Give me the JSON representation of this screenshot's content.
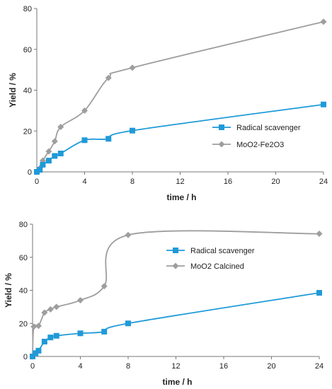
{
  "chart_data": [
    {
      "type": "line",
      "xlabel": "time / h",
      "ylabel": "Yield / %",
      "xlim": [
        0,
        24
      ],
      "ylim": [
        0,
        80
      ],
      "xticks": [
        0,
        4,
        8,
        12,
        16,
        20,
        24
      ],
      "yticks": [
        0,
        20,
        40,
        60,
        80
      ],
      "grid": false,
      "legend_position": "right",
      "series": [
        {
          "name": "Radical scavenger",
          "color": "#1f9ad8",
          "marker": "square",
          "x": [
            0,
            0.25,
            0.5,
            1,
            1.5,
            2,
            4,
            6,
            8,
            24
          ],
          "y": [
            0,
            1,
            3.5,
            5.5,
            7.8,
            9,
            15.5,
            16.2,
            20.2,
            33
          ]
        },
        {
          "name": "MoO2-Fe2O3",
          "color": "#9e9e9e",
          "marker": "diamond",
          "x": [
            0,
            0.25,
            0.5,
            1,
            1.5,
            2,
            4,
            6,
            8,
            24
          ],
          "y": [
            0,
            1.8,
            5.5,
            10,
            15,
            22,
            30,
            46,
            51,
            73.5
          ]
        }
      ]
    },
    {
      "type": "line",
      "xlabel": "time / h",
      "ylabel": "Yield / %",
      "xlim": [
        0,
        24
      ],
      "ylim": [
        0,
        80
      ],
      "xticks": [
        0,
        4,
        8,
        12,
        16,
        20,
        24
      ],
      "yticks": [
        0,
        20,
        40,
        60,
        80
      ],
      "grid": false,
      "legend_position": "center",
      "series": [
        {
          "name": "Radical scavenger",
          "color": "#1f9ad8",
          "marker": "square",
          "x": [
            0,
            0.25,
            0.5,
            1,
            1.5,
            2,
            4,
            6,
            8,
            24
          ],
          "y": [
            0,
            2,
            3.5,
            9,
            11.5,
            12.5,
            14,
            15,
            20,
            38.5
          ]
        },
        {
          "name": "MoO2 Calcined",
          "color": "#9e9e9e",
          "marker": "diamond",
          "x": [
            0,
            0.1,
            0.5,
            1,
            1.5,
            2,
            4,
            6,
            8,
            24
          ],
          "y": [
            0,
            18,
            18.5,
            26.5,
            28.5,
            30,
            34,
            42.5,
            73.5,
            74.2
          ]
        }
      ]
    }
  ]
}
